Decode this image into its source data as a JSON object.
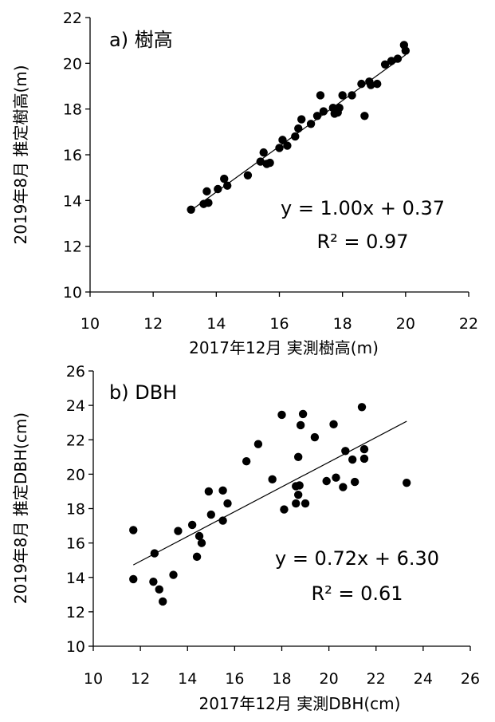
{
  "chart_data": [
    {
      "type": "scatter",
      "title": "a) 樹高",
      "xlabel": "2017年12月 実測樹高(m)",
      "ylabel": "2019年8月 推定樹高(m)",
      "xlim": [
        10,
        22
      ],
      "ylim": [
        10,
        22
      ],
      "xticks": [
        "10",
        "12",
        "14",
        "16",
        "18",
        "20",
        "22"
      ],
      "yticks": [
        "10",
        "12",
        "14",
        "16",
        "18",
        "20",
        "22"
      ],
      "equation": "y = 1.00x + 0.37",
      "r2": "R² = 0.97",
      "trend": {
        "slope": 1.0,
        "intercept": 0.37,
        "x_range": [
          13.2,
          20.0
        ]
      },
      "grid": false,
      "points": [
        {
          "x": 13.2,
          "y": 13.6
        },
        {
          "x": 13.6,
          "y": 13.85
        },
        {
          "x": 13.7,
          "y": 14.4
        },
        {
          "x": 13.75,
          "y": 13.9
        },
        {
          "x": 14.05,
          "y": 14.5
        },
        {
          "x": 14.25,
          "y": 14.95
        },
        {
          "x": 14.35,
          "y": 14.65
        },
        {
          "x": 15.0,
          "y": 15.1
        },
        {
          "x": 15.4,
          "y": 15.7
        },
        {
          "x": 15.5,
          "y": 16.1
        },
        {
          "x": 15.6,
          "y": 15.6
        },
        {
          "x": 15.7,
          "y": 15.65
        },
        {
          "x": 16.0,
          "y": 16.3
        },
        {
          "x": 16.1,
          "y": 16.65
        },
        {
          "x": 16.25,
          "y": 16.4
        },
        {
          "x": 16.5,
          "y": 16.8
        },
        {
          "x": 16.6,
          "y": 17.15
        },
        {
          "x": 16.7,
          "y": 17.55
        },
        {
          "x": 17.0,
          "y": 17.35
        },
        {
          "x": 17.2,
          "y": 17.7
        },
        {
          "x": 17.3,
          "y": 18.6
        },
        {
          "x": 17.4,
          "y": 17.9
        },
        {
          "x": 17.7,
          "y": 18.05
        },
        {
          "x": 17.75,
          "y": 17.8
        },
        {
          "x": 17.85,
          "y": 17.85
        },
        {
          "x": 17.9,
          "y": 18.05
        },
        {
          "x": 18.0,
          "y": 18.6
        },
        {
          "x": 18.3,
          "y": 18.6
        },
        {
          "x": 18.6,
          "y": 19.1
        },
        {
          "x": 18.7,
          "y": 17.7
        },
        {
          "x": 18.85,
          "y": 19.2
        },
        {
          "x": 18.9,
          "y": 19.05
        },
        {
          "x": 19.1,
          "y": 19.1
        },
        {
          "x": 19.35,
          "y": 19.95
        },
        {
          "x": 19.55,
          "y": 20.1
        },
        {
          "x": 19.75,
          "y": 20.2
        },
        {
          "x": 19.95,
          "y": 20.8
        },
        {
          "x": 20.0,
          "y": 20.55
        }
      ]
    },
    {
      "type": "scatter",
      "title": "b) DBH",
      "xlabel": "2017年12月 実測DBH(cm)",
      "ylabel": "2019年8月 推定DBH(cm)",
      "xlim": [
        10,
        26
      ],
      "ylim": [
        10,
        26
      ],
      "xticks": [
        "10",
        "12",
        "14",
        "16",
        "18",
        "20",
        "22",
        "24",
        "26"
      ],
      "yticks": [
        "10",
        "12",
        "14",
        "16",
        "18",
        "20",
        "22",
        "24",
        "26"
      ],
      "equation": "y = 0.72x + 6.30",
      "r2": "R² = 0.61",
      "trend": {
        "slope": 0.72,
        "intercept": 6.3,
        "x_range": [
          11.7,
          23.3
        ]
      },
      "grid": false,
      "points": [
        {
          "x": 11.7,
          "y": 16.75
        },
        {
          "x": 11.7,
          "y": 13.9
        },
        {
          "x": 12.55,
          "y": 13.75
        },
        {
          "x": 12.6,
          "y": 15.4
        },
        {
          "x": 12.8,
          "y": 13.3
        },
        {
          "x": 12.95,
          "y": 12.6
        },
        {
          "x": 13.4,
          "y": 14.15
        },
        {
          "x": 13.6,
          "y": 16.7
        },
        {
          "x": 14.2,
          "y": 17.05
        },
        {
          "x": 14.4,
          "y": 15.2
        },
        {
          "x": 14.5,
          "y": 16.4
        },
        {
          "x": 14.6,
          "y": 16.0
        },
        {
          "x": 14.9,
          "y": 19.0
        },
        {
          "x": 15.0,
          "y": 17.65
        },
        {
          "x": 15.5,
          "y": 19.05
        },
        {
          "x": 15.5,
          "y": 17.3
        },
        {
          "x": 15.7,
          "y": 18.3
        },
        {
          "x": 16.5,
          "y": 20.75
        },
        {
          "x": 17.0,
          "y": 21.75
        },
        {
          "x": 17.6,
          "y": 19.7
        },
        {
          "x": 18.0,
          "y": 23.45
        },
        {
          "x": 18.1,
          "y": 17.95
        },
        {
          "x": 18.6,
          "y": 19.3
        },
        {
          "x": 18.6,
          "y": 18.3
        },
        {
          "x": 18.7,
          "y": 18.8
        },
        {
          "x": 18.7,
          "y": 21.0
        },
        {
          "x": 18.75,
          "y": 19.35
        },
        {
          "x": 18.8,
          "y": 22.85
        },
        {
          "x": 18.9,
          "y": 23.5
        },
        {
          "x": 19.0,
          "y": 18.3
        },
        {
          "x": 19.4,
          "y": 22.15
        },
        {
          "x": 19.9,
          "y": 19.6
        },
        {
          "x": 20.2,
          "y": 22.9
        },
        {
          "x": 20.3,
          "y": 19.8
        },
        {
          "x": 20.6,
          "y": 19.25
        },
        {
          "x": 20.7,
          "y": 21.35
        },
        {
          "x": 21.0,
          "y": 20.85
        },
        {
          "x": 21.1,
          "y": 19.55
        },
        {
          "x": 21.4,
          "y": 23.9
        },
        {
          "x": 21.5,
          "y": 20.9
        },
        {
          "x": 21.5,
          "y": 21.45
        },
        {
          "x": 23.3,
          "y": 19.5
        }
      ]
    }
  ]
}
